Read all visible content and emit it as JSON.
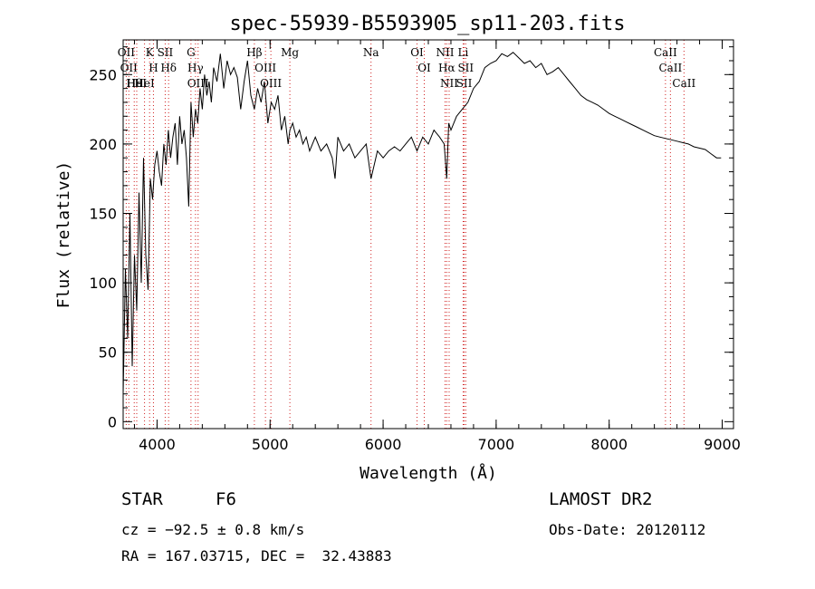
{
  "title": "spec-55939-B5593905_sp11-203.fits",
  "footer": {
    "object_class": "STAR",
    "subclass": "F6",
    "survey": "LAMOST DR2",
    "cz": "cz = −92.5 ± 0.8 km/s",
    "obs_date": "Obs-Date: 20120112",
    "radec": "RA = 167.03715, DEC =  32.43883"
  },
  "colors": {
    "spectrum": "#000000",
    "line_marker": "#d02020",
    "axes": "#000000"
  },
  "chart_data": {
    "type": "line",
    "xlabel": "Wavelength (Å)",
    "ylabel": "Flux (relative)",
    "xlim": [
      3700,
      9100
    ],
    "ylim": [
      -5,
      275
    ],
    "xticks": [
      4000,
      5000,
      6000,
      7000,
      8000,
      9000
    ],
    "yticks": [
      0,
      50,
      100,
      150,
      200,
      250
    ],
    "series": [
      {
        "x": [
          3700,
          3720,
          3740,
          3760,
          3780,
          3800,
          3820,
          3840,
          3860,
          3880,
          3900,
          3920,
          3940,
          3960,
          3980,
          4000,
          4020,
          4040,
          4060,
          4080,
          4100,
          4120,
          4140,
          4160,
          4180,
          4200,
          4220,
          4240,
          4260,
          4280,
          4300,
          4320,
          4340,
          4360,
          4380,
          4400,
          4420,
          4440,
          4460,
          4480,
          4500,
          4530,
          4560,
          4590,
          4620,
          4650,
          4680,
          4710,
          4740,
          4770,
          4800,
          4830,
          4861,
          4890,
          4920,
          4950,
          4980,
          5010,
          5040,
          5070,
          5100,
          5130,
          5160,
          5175,
          5200,
          5230,
          5260,
          5290,
          5320,
          5350,
          5400,
          5450,
          5500,
          5550,
          5575,
          5600,
          5650,
          5700,
          5750,
          5800,
          5850,
          5893,
          5950,
          6000,
          6050,
          6100,
          6150,
          6200,
          6250,
          6300,
          6350,
          6400,
          6450,
          6500,
          6540,
          6563,
          6580,
          6600,
          6650,
          6700,
          6750,
          6800,
          6850,
          6900,
          6950,
          7000,
          7050,
          7100,
          7150,
          7200,
          7250,
          7300,
          7350,
          7400,
          7450,
          7500,
          7550,
          7600,
          7650,
          7700,
          7750,
          7800,
          7850,
          7900,
          7950,
          8000,
          8050,
          8100,
          8150,
          8200,
          8250,
          8300,
          8350,
          8400,
          8450,
          8500,
          8550,
          8600,
          8650,
          8700,
          8750,
          8800,
          8850,
          8900,
          8950,
          8990
        ],
        "y": [
          20,
          110,
          60,
          150,
          40,
          120,
          80,
          165,
          100,
          190,
          120,
          95,
          175,
          160,
          185,
          195,
          180,
          170,
          200,
          185,
          210,
          190,
          205,
          215,
          185,
          220,
          200,
          210,
          190,
          155,
          230,
          205,
          225,
          215,
          240,
          225,
          250,
          235,
          245,
          230,
          255,
          245,
          265,
          240,
          260,
          250,
          255,
          248,
          225,
          245,
          260,
          235,
          225,
          240,
          230,
          245,
          215,
          230,
          225,
          235,
          210,
          220,
          200,
          210,
          215,
          205,
          210,
          200,
          205,
          195,
          205,
          195,
          200,
          190,
          175,
          205,
          195,
          200,
          190,
          195,
          200,
          175,
          195,
          190,
          195,
          198,
          195,
          200,
          205,
          195,
          205,
          200,
          210,
          205,
          200,
          175,
          215,
          210,
          220,
          225,
          230,
          240,
          245,
          255,
          258,
          260,
          265,
          263,
          266,
          262,
          258,
          260,
          255,
          258,
          250,
          252,
          255,
          250,
          245,
          240,
          235,
          232,
          230,
          228,
          225,
          222,
          220,
          218,
          216,
          214,
          212,
          210,
          208,
          206,
          205,
          204,
          203,
          202,
          201,
          200,
          198,
          197,
          196,
          193,
          190,
          190
        ]
      }
    ],
    "line_markers": [
      {
        "wavelength": 3727,
        "label": "OII"
      },
      {
        "wavelength": 3750,
        "label": "OII"
      },
      {
        "wavelength": 3798,
        "label": "Hθ"
      },
      {
        "wavelength": 3820,
        "label": "HeI"
      },
      {
        "wavelength": 3889,
        "label": "HeI"
      },
      {
        "wavelength": 3934,
        "label": "K"
      },
      {
        "wavelength": 3968,
        "label": "H"
      },
      {
        "wavelength": 4072,
        "label": "SII"
      },
      {
        "wavelength": 4102,
        "label": "Hδ"
      },
      {
        "wavelength": 4300,
        "label": "G"
      },
      {
        "wavelength": 4340,
        "label": "Hγ"
      },
      {
        "wavelength": 4363,
        "label": "OIII"
      },
      {
        "wavelength": 4861,
        "label": "Hβ"
      },
      {
        "wavelength": 4959,
        "label": "OIII"
      },
      {
        "wavelength": 5007,
        "label": "OIII"
      },
      {
        "wavelength": 5175,
        "label": "Mg"
      },
      {
        "wavelength": 5893,
        "label": "Na"
      },
      {
        "wavelength": 6300,
        "label": "OI"
      },
      {
        "wavelength": 6364,
        "label": "OI"
      },
      {
        "wavelength": 6548,
        "label": "NII"
      },
      {
        "wavelength": 6563,
        "label": "Hα"
      },
      {
        "wavelength": 6584,
        "label": "NII"
      },
      {
        "wavelength": 6708,
        "label": "Li"
      },
      {
        "wavelength": 6717,
        "label": "SII"
      },
      {
        "wavelength": 6731,
        "label": "SII"
      },
      {
        "wavelength": 8498,
        "label": "CaII"
      },
      {
        "wavelength": 8542,
        "label": "CaII"
      },
      {
        "wavelength": 8662,
        "label": "CaII"
      }
    ],
    "grid": false,
    "legend": "none"
  }
}
